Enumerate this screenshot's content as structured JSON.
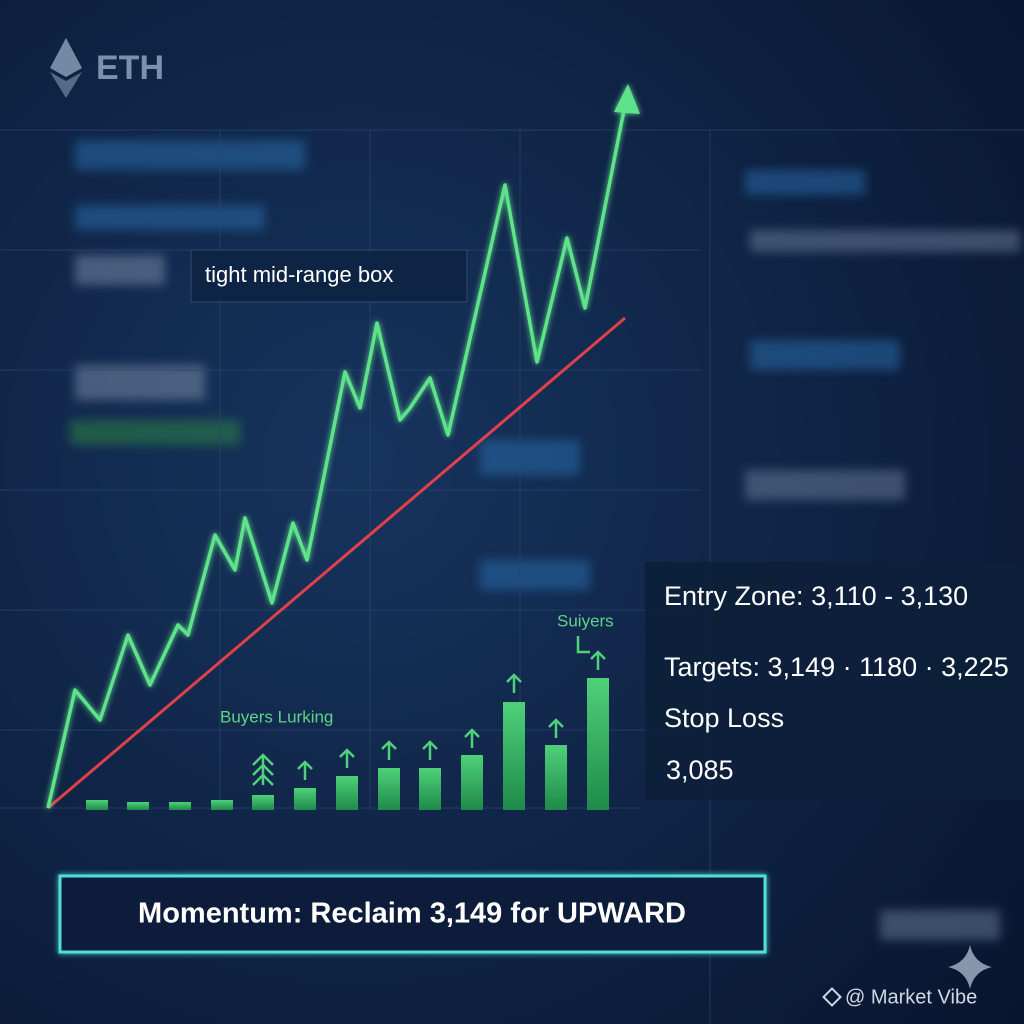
{
  "header": {
    "logo": "ETH"
  },
  "chart": {
    "annotation": "tight mid-range box",
    "buyers_label": "Buyers Lurking",
    "buyers_label_right": "Suiyers"
  },
  "panel": {
    "entry": "Entry Zone: 3,110 - 3,130",
    "targets": "Targets: 3,149 · 1180 · 3,225",
    "stop_loss_label": "Stop Loss",
    "stop_loss_value": "3,085"
  },
  "banner": "Momentum: Reclaim 3,149 for UPWARD",
  "footer": "@ Market Vibe"
}
